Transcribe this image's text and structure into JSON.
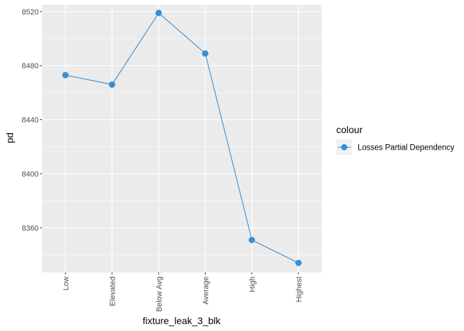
{
  "chart_data": {
    "type": "line",
    "xlabel": "fixture_leak_3_blk",
    "ylabel": "pd",
    "categories": [
      "Low",
      "Elevated",
      "Below Avg",
      "Average",
      "High",
      "Highest"
    ],
    "series": [
      {
        "name": "Losses Partial Dependency",
        "values": [
          8473,
          8466,
          8519,
          8489,
          8351,
          8334
        ]
      }
    ],
    "ylim": [
      8327,
      8525
    ],
    "yticks": [
      8360,
      8400,
      8440,
      8480,
      8520
    ],
    "ytick_labels": [
      "8360",
      "8400",
      "8440",
      "8480",
      "8520"
    ],
    "grid": true,
    "legend": {
      "title": "colour",
      "placement": "right"
    },
    "colors": {
      "series": "#3a8fd1",
      "panel": "#ebebeb",
      "grid": "#ffffff"
    }
  }
}
